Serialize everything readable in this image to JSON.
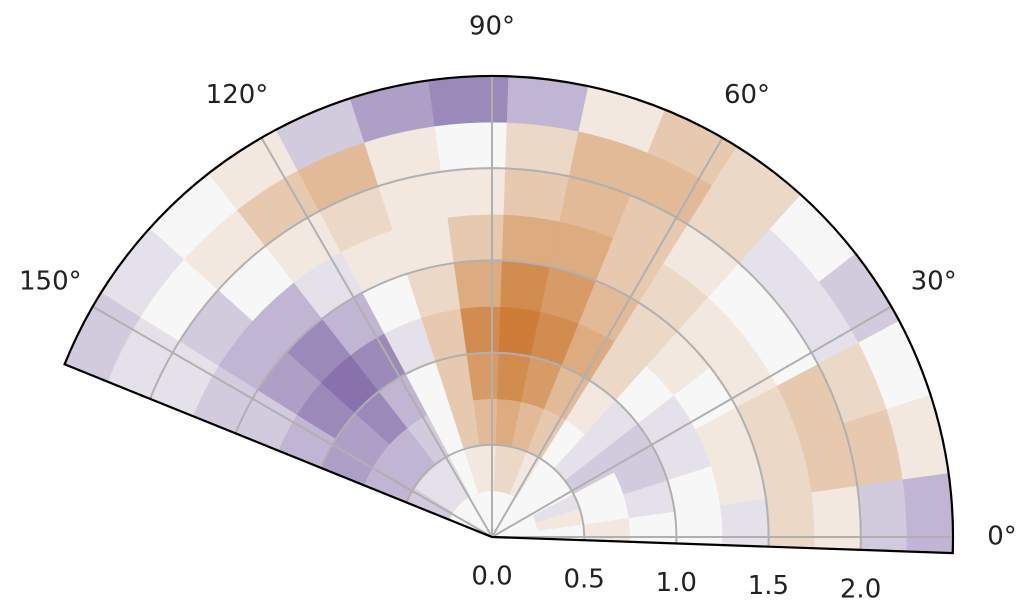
{
  "chart_data": {
    "type": "polar-heatmap",
    "thetalim": [
      -2,
      158
    ],
    "rlim": [
      0,
      2.5
    ],
    "theta_bins": [
      -2,
      8,
      18,
      28,
      38,
      48,
      58,
      68,
      78,
      88,
      98,
      108,
      118,
      128,
      138,
      148,
      158
    ],
    "r_bins": [
      0,
      0.25,
      0.5,
      0.75,
      1.0,
      1.25,
      1.5,
      1.75,
      2.0,
      2.25,
      2.5
    ],
    "clim": [
      -1,
      1
    ],
    "colors": [
      "#3f1a7a",
      "#f7f7f7",
      "#c25e08"
    ],
    "grid": true,
    "thetaticks": [
      {
        "value": 0,
        "label": "0°"
      },
      {
        "value": 30,
        "label": "30°"
      },
      {
        "value": 60,
        "label": "60°"
      },
      {
        "value": 90,
        "label": "90°"
      },
      {
        "value": 120,
        "label": "120°"
      },
      {
        "value": 150,
        "label": "150°"
      }
    ],
    "rticks": [
      {
        "value": 0,
        "label": "0.0"
      },
      {
        "value": 0.5,
        "label": "0.5"
      },
      {
        "value": 1,
        "label": "1.0"
      },
      {
        "value": 1.5,
        "label": "1.5"
      },
      {
        "value": 2,
        "label": "2.0"
      }
    ],
    "values": [
      [
        0,
        0,
        0.1,
        0,
        0,
        -0.1,
        0.2,
        0.1,
        -0.2,
        -0.3
      ],
      [
        0,
        0.1,
        0,
        -0.1,
        0,
        0.1,
        0.2,
        0.3,
        0.3,
        0.1
      ],
      [
        0,
        -0.1,
        0,
        -0.2,
        -0.1,
        0.1,
        0.2,
        0.3,
        0.2,
        0
      ],
      [
        0,
        0,
        -0.2,
        -0.2,
        -0.1,
        0,
        0.1,
        0,
        -0.1,
        -0.2
      ],
      [
        0,
        0,
        -0.1,
        -0.1,
        0,
        0.1,
        0.1,
        0,
        -0.1,
        0
      ],
      [
        0,
        0,
        0,
        0.1,
        0.2,
        0.2,
        0.2,
        0.1,
        0.2,
        0.2
      ],
      [
        0,
        0.1,
        0.3,
        0.4,
        0.5,
        0.4,
        0.3,
        0.3,
        0.4,
        0.3
      ],
      [
        0,
        0.2,
        0.4,
        0.6,
        0.7,
        0.6,
        0.5,
        0.4,
        0.4,
        0.1
      ],
      [
        0,
        0.2,
        0.5,
        0.7,
        0.8,
        0.7,
        0.5,
        0.3,
        0.2,
        -0.3
      ],
      [
        0,
        0.1,
        0.4,
        0.6,
        0.7,
        0.5,
        0.3,
        0.1,
        0,
        -0.5
      ],
      [
        0,
        0.1,
        0.3,
        0.3,
        0.3,
        0.2,
        0.1,
        0.1,
        0.1,
        -0.4
      ],
      [
        0,
        0,
        0,
        0,
        -0.1,
        0,
        0.1,
        0.2,
        0.4,
        -0.2
      ],
      [
        0,
        -0.1,
        -0.2,
        -0.3,
        -0.5,
        -0.3,
        -0.1,
        0.1,
        0.3,
        0.1
      ],
      [
        0,
        -0.1,
        -0.3,
        -0.5,
        -0.6,
        -0.5,
        -0.3,
        0,
        0.1,
        0
      ],
      [
        0,
        -0.1,
        -0.3,
        -0.4,
        -0.5,
        -0.4,
        -0.3,
        -0.2,
        0,
        -0.1
      ],
      [
        0,
        -0.2,
        -0.3,
        -0.4,
        -0.3,
        -0.2,
        -0.2,
        -0.1,
        -0.1,
        -0.2
      ]
    ]
  }
}
